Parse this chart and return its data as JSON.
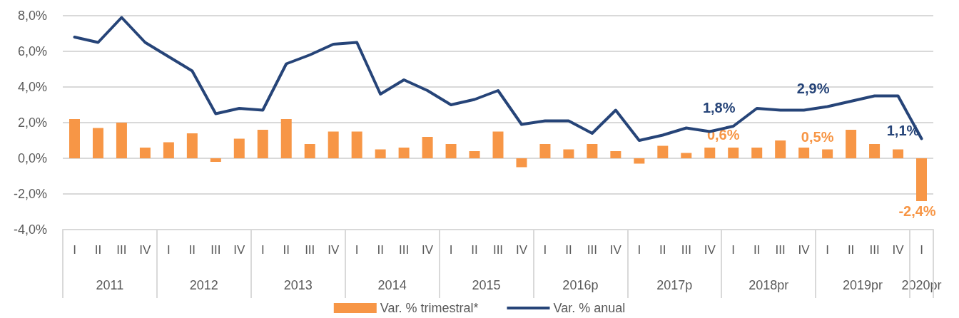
{
  "chart_data": {
    "type": "bar",
    "categories": [
      "I",
      "II",
      "III",
      "IV",
      "I",
      "II",
      "III",
      "IV",
      "I",
      "II",
      "III",
      "IV",
      "I",
      "II",
      "III",
      "IV",
      "I",
      "II",
      "III",
      "IV",
      "I",
      "II",
      "III",
      "IV",
      "I",
      "II",
      "III",
      "IV",
      "I",
      "II",
      "III",
      "IV",
      "I",
      "II",
      "III",
      "IV",
      "I"
    ],
    "series": [
      {
        "name": "Var. % trimestral*",
        "color": "#f79646",
        "values": [
          2.2,
          1.7,
          2.0,
          0.6,
          0.9,
          1.4,
          -0.2,
          1.1,
          1.6,
          2.2,
          0.8,
          1.5,
          1.5,
          0.5,
          0.6,
          1.2,
          0.8,
          0.4,
          1.5,
          -0.5,
          0.8,
          0.5,
          0.8,
          0.4,
          -0.3,
          0.7,
          0.3,
          0.6,
          0.6,
          0.6,
          1.0,
          0.6,
          0.5,
          1.6,
          0.8,
          0.5,
          -2.4
        ],
        "value_labels": [
          null,
          null,
          null,
          null,
          null,
          null,
          null,
          null,
          null,
          null,
          null,
          null,
          null,
          null,
          null,
          null,
          null,
          null,
          null,
          null,
          null,
          null,
          null,
          null,
          null,
          null,
          null,
          null,
          "0,6%",
          null,
          null,
          null,
          "0,5%",
          null,
          null,
          null,
          "-2,4%"
        ]
      },
      {
        "name": "Var. % anual",
        "type": "line",
        "color": "#264478",
        "values": [
          6.8,
          6.5,
          7.9,
          6.5,
          5.7,
          4.9,
          2.5,
          2.8,
          2.7,
          5.3,
          5.8,
          6.4,
          6.5,
          3.6,
          4.4,
          3.8,
          3.0,
          3.3,
          3.8,
          1.9,
          2.1,
          2.1,
          1.4,
          2.7,
          1.0,
          1.3,
          1.7,
          1.5,
          1.8,
          2.8,
          2.7,
          2.7,
          2.9,
          3.2,
          3.5,
          3.5,
          1.1
        ],
        "value_labels": [
          null,
          null,
          null,
          null,
          null,
          null,
          null,
          null,
          null,
          null,
          null,
          null,
          null,
          null,
          null,
          null,
          null,
          null,
          null,
          null,
          null,
          null,
          null,
          null,
          null,
          null,
          null,
          null,
          "1,8%",
          null,
          null,
          null,
          "2,9%",
          null,
          null,
          null,
          "1,1%"
        ]
      }
    ],
    "ylim": [
      -4,
      8
    ],
    "yticks": [
      {
        "value": -4,
        "label": "-4,0%"
      },
      {
        "value": -2,
        "label": "-2,0%"
      },
      {
        "value": 0,
        "label": "0,0%"
      },
      {
        "value": 2,
        "label": "2,0%"
      },
      {
        "value": 4,
        "label": "4,0%"
      },
      {
        "value": 6,
        "label": "6,0%"
      },
      {
        "value": 8,
        "label": "8,0%"
      }
    ],
    "annotations": [
      "2011",
      "2012",
      "2013",
      "2014",
      "2015",
      "2016p",
      "2017p",
      "2018pr",
      "2019pr",
      "2020pr"
    ],
    "grid": "y",
    "legend": "bottom",
    "marker": "none",
    "line_style": "solid"
  }
}
